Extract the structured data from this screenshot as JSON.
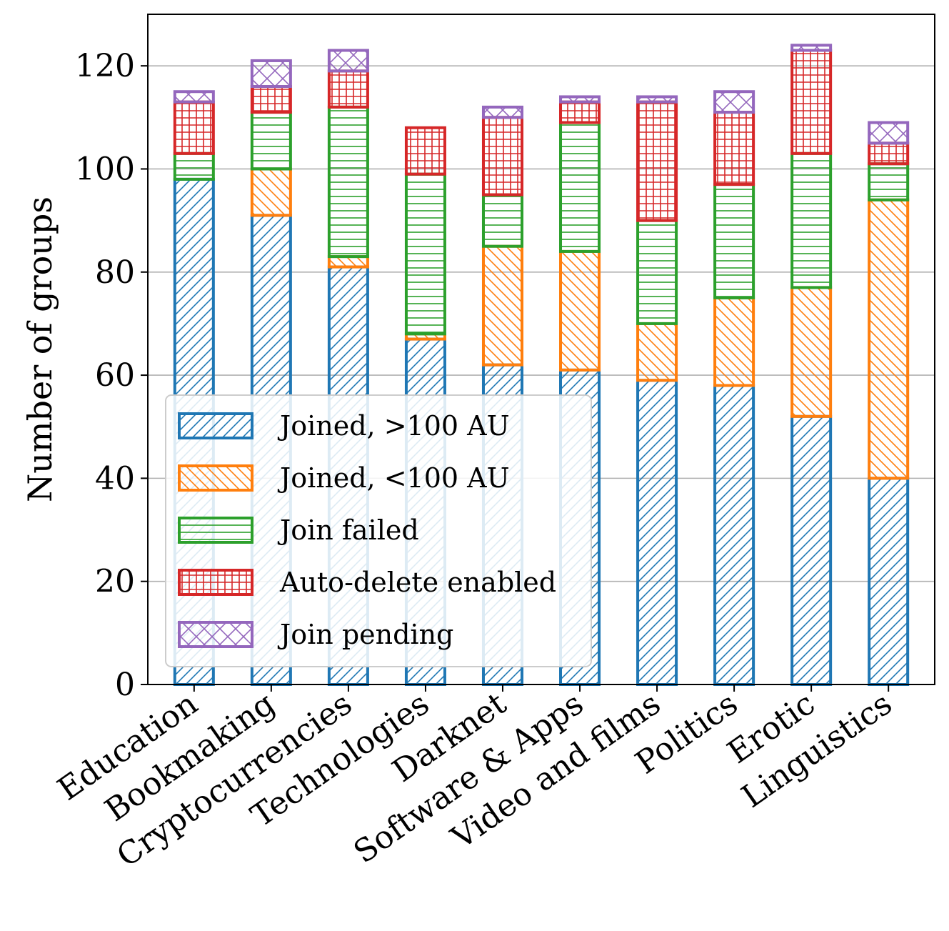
{
  "chart_data": {
    "type": "bar",
    "stacked": true,
    "title": "",
    "xlabel": "",
    "ylabel": "Number of groups",
    "ylim": [
      0,
      130
    ],
    "yticks": [
      0,
      20,
      40,
      60,
      80,
      100,
      120
    ],
    "grid": "y",
    "legend_position": "lower-left",
    "categories": [
      "Education",
      "Bookmaking",
      "Cryptocurrencies",
      "Technologies",
      "Darknet",
      "Software & Apps",
      "Video and films",
      "Politics",
      "Erotic",
      "Linguistics"
    ],
    "series": [
      {
        "name": "Joined, >100 AU",
        "color": "#1f77b4",
        "hatch": "diagonal-forward",
        "values": [
          98,
          91,
          81,
          67,
          62,
          61,
          59,
          58,
          52,
          40
        ]
      },
      {
        "name": "Joined, <100 AU",
        "color": "#ff7f0e",
        "hatch": "diagonal-back",
        "values": [
          0,
          9,
          2,
          1,
          23,
          23,
          11,
          17,
          25,
          54
        ]
      },
      {
        "name": "Join failed",
        "color": "#2ca02c",
        "hatch": "horizontal",
        "values": [
          5,
          11,
          29,
          31,
          10,
          25,
          20,
          22,
          26,
          7
        ]
      },
      {
        "name": "Auto-delete enabled",
        "color": "#d62728",
        "hatch": "grid",
        "values": [
          10,
          5,
          7,
          9,
          15,
          4,
          23,
          14,
          20,
          4
        ]
      },
      {
        "name": "Join pending",
        "color": "#9467bd",
        "hatch": "crosshatch",
        "values": [
          2,
          5,
          4,
          0,
          2,
          1,
          1,
          4,
          1,
          4
        ]
      }
    ]
  }
}
